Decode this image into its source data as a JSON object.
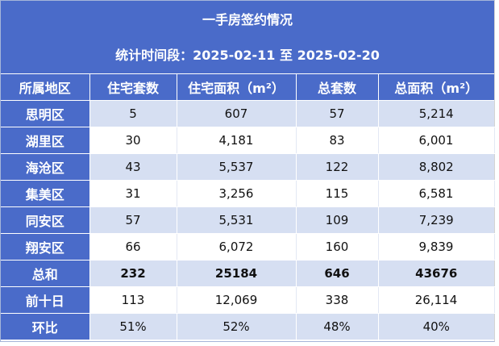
{
  "title": "一手房签约情况",
  "subtitle": "统计时间段：2025-02-11 至 2025-02-20",
  "headers": [
    "所属地区",
    "住宅套数",
    "住宅面积（m²）",
    "总套数",
    "总面积（m²）"
  ],
  "rows": [
    {
      "region": "思明区",
      "res_units": "5",
      "res_area": "607",
      "total_units": "57",
      "total_area": "5,214"
    },
    {
      "region": "湖里区",
      "res_units": "30",
      "res_area": "4,181",
      "total_units": "83",
      "total_area": "6,001"
    },
    {
      "region": "海沧区",
      "res_units": "43",
      "res_area": "5,537",
      "total_units": "122",
      "total_area": "8,802"
    },
    {
      "region": "集美区",
      "res_units": "31",
      "res_area": "3,256",
      "total_units": "115",
      "total_area": "6,581"
    },
    {
      "region": "同安区",
      "res_units": "57",
      "res_area": "5,531",
      "total_units": "109",
      "total_area": "7,239"
    },
    {
      "region": "翔安区",
      "res_units": "66",
      "res_area": "6,072",
      "total_units": "160",
      "total_area": "9,839"
    },
    {
      "region": "总和",
      "res_units": "232",
      "res_area": "25184",
      "total_units": "646",
      "total_area": "43676"
    },
    {
      "region": "前十日",
      "res_units": "113",
      "res_area": "12,069",
      "total_units": "338",
      "total_area": "26,114"
    },
    {
      "region": "环比",
      "res_units": "51%",
      "res_area": "52%",
      "total_units": "48%",
      "total_area": "40%"
    }
  ],
  "colors": {
    "header_bg": "#4a6bc9",
    "stripe_bg": "#d6dff2",
    "plain_bg": "#ffffff"
  }
}
